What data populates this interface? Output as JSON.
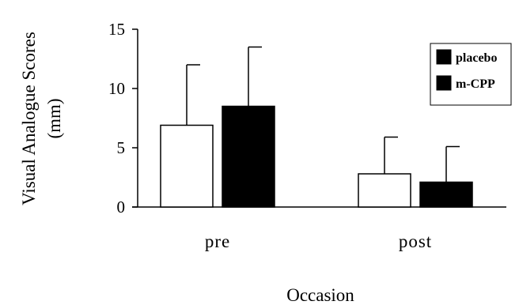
{
  "chart_data": {
    "type": "bar",
    "categories": [
      "pre",
      "post"
    ],
    "series": [
      {
        "name": "placebo",
        "values": [
          6.9,
          2.8
        ],
        "error": [
          5.1,
          3.1
        ],
        "color": "#ffffff"
      },
      {
        "name": "m-CPP",
        "values": [
          8.5,
          2.1
        ],
        "error": [
          5.0,
          3.0
        ],
        "color": "#000000"
      }
    ],
    "ylabel_line1": "Visual Analogue Scores",
    "ylabel_line2": "(mm)",
    "xlabel": "Occasion",
    "ylim": [
      0,
      15
    ],
    "yticks": [
      "0",
      "5",
      "10",
      "15"
    ],
    "grid": false,
    "legend_position": "top-right"
  }
}
